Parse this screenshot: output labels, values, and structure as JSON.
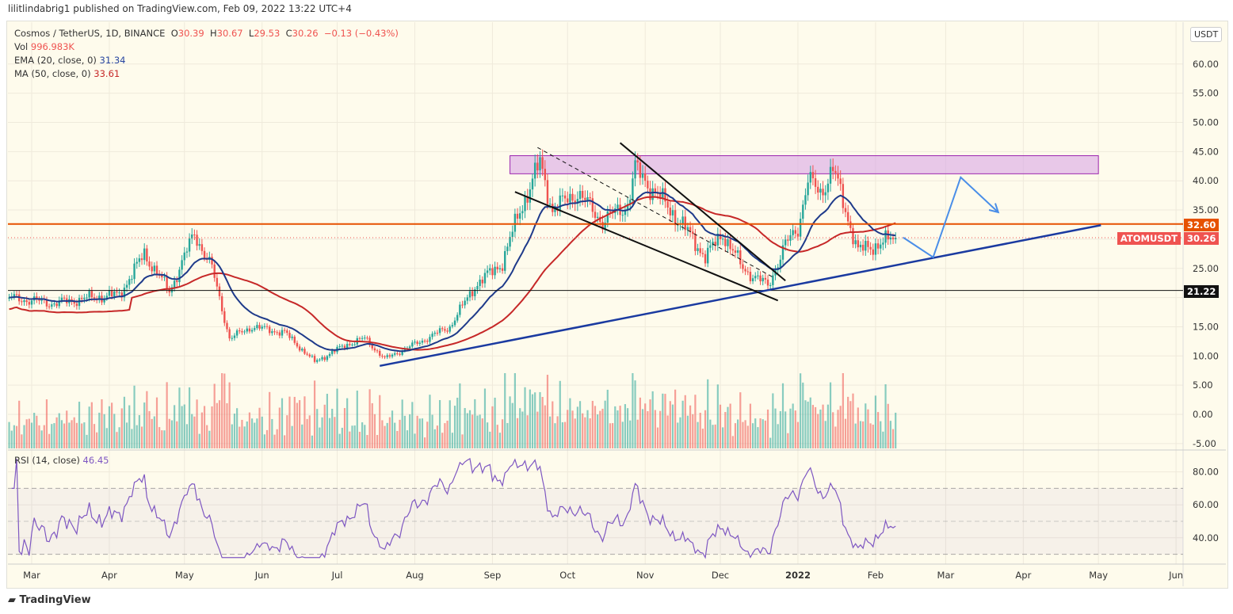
{
  "published": "lilitlindabrig1 published on TradingView.com, Feb 09, 2022 13:22 UTC+4",
  "legend": {
    "symbol": "Cosmos / TetherUS, 1D, BINANCE",
    "o_label": "O",
    "o": "30.39",
    "h_label": "H",
    "h": "30.67",
    "l_label": "L",
    "l": "29.53",
    "c_label": "C",
    "c": "30.26",
    "change": "−0.13 (−0.43%)",
    "vol_label": "Vol",
    "vol": "996.983K",
    "ema_label": "EMA (20, close, 0)",
    "ema": "31.34",
    "ma_label": "MA (50, close, 0)",
    "ma": "33.61",
    "rsi_label": "RSI (14, close)",
    "rsi": "46.45"
  },
  "currency_button": "USDT",
  "price_tags": {
    "resistance": "32.60",
    "symbol": "ATOMUSDT",
    "last": "30.26",
    "support": "21.22"
  },
  "colors": {
    "up": "#26a69a",
    "down": "#ef5350",
    "ema": "#1e3a8a",
    "ma": "#c62828",
    "rsi": "#7e57c2",
    "resistance": "#e65100",
    "trend": "#1a3aa0",
    "projection": "#4a8ee8",
    "zone": "#d9a6e6"
  },
  "footer": "TradingView",
  "chart_data": [
    {
      "type": "candlestick",
      "title": "Cosmos / TetherUS, 1D, BINANCE",
      "ylim": [
        -5,
        65
      ],
      "y_ticks": [
        "60.00",
        "55.00",
        "50.00",
        "45.00",
        "40.00",
        "35.00",
        "30.00",
        "25.00",
        "20.00",
        "15.00",
        "10.00",
        "5.00",
        "0.00",
        "-5.00"
      ],
      "x_ticks": [
        "Mar",
        "Apr",
        "May",
        "Jun",
        "Jul",
        "Aug",
        "Sep",
        "Oct",
        "Nov",
        "Dec",
        "2022",
        "Feb",
        "Mar",
        "Apr",
        "May",
        "Jun"
      ],
      "approx_close_path": [
        [
          "2021-02-20",
          20
        ],
        [
          "2021-03-10",
          19
        ],
        [
          "2021-03-25",
          20
        ],
        [
          "2021-04-05",
          20.5
        ],
        [
          "2021-04-15",
          27.5
        ],
        [
          "2021-04-25",
          21
        ],
        [
          "2021-05-05",
          31
        ],
        [
          "2021-05-12",
          25
        ],
        [
          "2021-05-19",
          13
        ],
        [
          "2021-05-28",
          15
        ],
        [
          "2021-06-10",
          14
        ],
        [
          "2021-06-22",
          9
        ],
        [
          "2021-07-05",
          12
        ],
        [
          "2021-07-12",
          13
        ],
        [
          "2021-07-20",
          9.5
        ],
        [
          "2021-08-01",
          12
        ],
        [
          "2021-08-15",
          15
        ],
        [
          "2021-08-25",
          22
        ],
        [
          "2021-09-05",
          26
        ],
        [
          "2021-09-12",
          35
        ],
        [
          "2021-09-20",
          43
        ],
        [
          "2021-09-25",
          35
        ],
        [
          "2021-10-05",
          38
        ],
        [
          "2021-10-15",
          33
        ],
        [
          "2021-10-25",
          36
        ],
        [
          "2021-10-28",
          42
        ],
        [
          "2021-11-05",
          38
        ],
        [
          "2021-11-15",
          33
        ],
        [
          "2021-11-25",
          27
        ],
        [
          "2021-12-02",
          31
        ],
        [
          "2021-12-10",
          25
        ],
        [
          "2021-12-20",
          22
        ],
        [
          "2021-12-27",
          29
        ],
        [
          "2022-01-01",
          32
        ],
        [
          "2022-01-05",
          40
        ],
        [
          "2022-01-10",
          38
        ],
        [
          "2022-01-15",
          42
        ],
        [
          "2022-01-20",
          35
        ],
        [
          "2022-01-25",
          28
        ],
        [
          "2022-02-01",
          29
        ],
        [
          "2022-02-09",
          30.26
        ]
      ],
      "indicators": [
        "EMA 20",
        "MA 50",
        "Volume"
      ],
      "drawings": {
        "resistance_zone": {
          "from": "2021-09-08",
          "to": "2022-05-01",
          "low": 41.2,
          "high": 44.3
        },
        "resistance_line": 32.6,
        "support_line": 21.22,
        "last_price_line": 30.26,
        "ascending_trendline": [
          [
            "2021-07-18",
            8.3
          ],
          [
            "2022-05-02",
            32.4
          ]
        ],
        "wedge_upper": [
          [
            "2021-10-22",
            46.5
          ],
          [
            "2021-12-27",
            22.9
          ]
        ],
        "wedge_lower": [
          [
            "2021-09-10",
            38.1
          ],
          [
            "2021-12-24",
            19.5
          ]
        ],
        "wedge_dashed": [
          [
            "2021-09-19",
            45.7
          ],
          [
            "2021-12-22",
            23.5
          ]
        ],
        "projection_path": [
          [
            "2022-02-12",
            30.3
          ],
          [
            "2022-02-24",
            26.9
          ],
          [
            "2022-03-07",
            40.6
          ],
          [
            "2022-03-22",
            34.6
          ]
        ]
      }
    },
    {
      "type": "line",
      "title": "RSI (14, close)",
      "ylim": [
        20,
        90
      ],
      "y_ticks": [
        "80.00",
        "60.00",
        "40.00"
      ],
      "bands": [
        70,
        50,
        30
      ]
    }
  ]
}
